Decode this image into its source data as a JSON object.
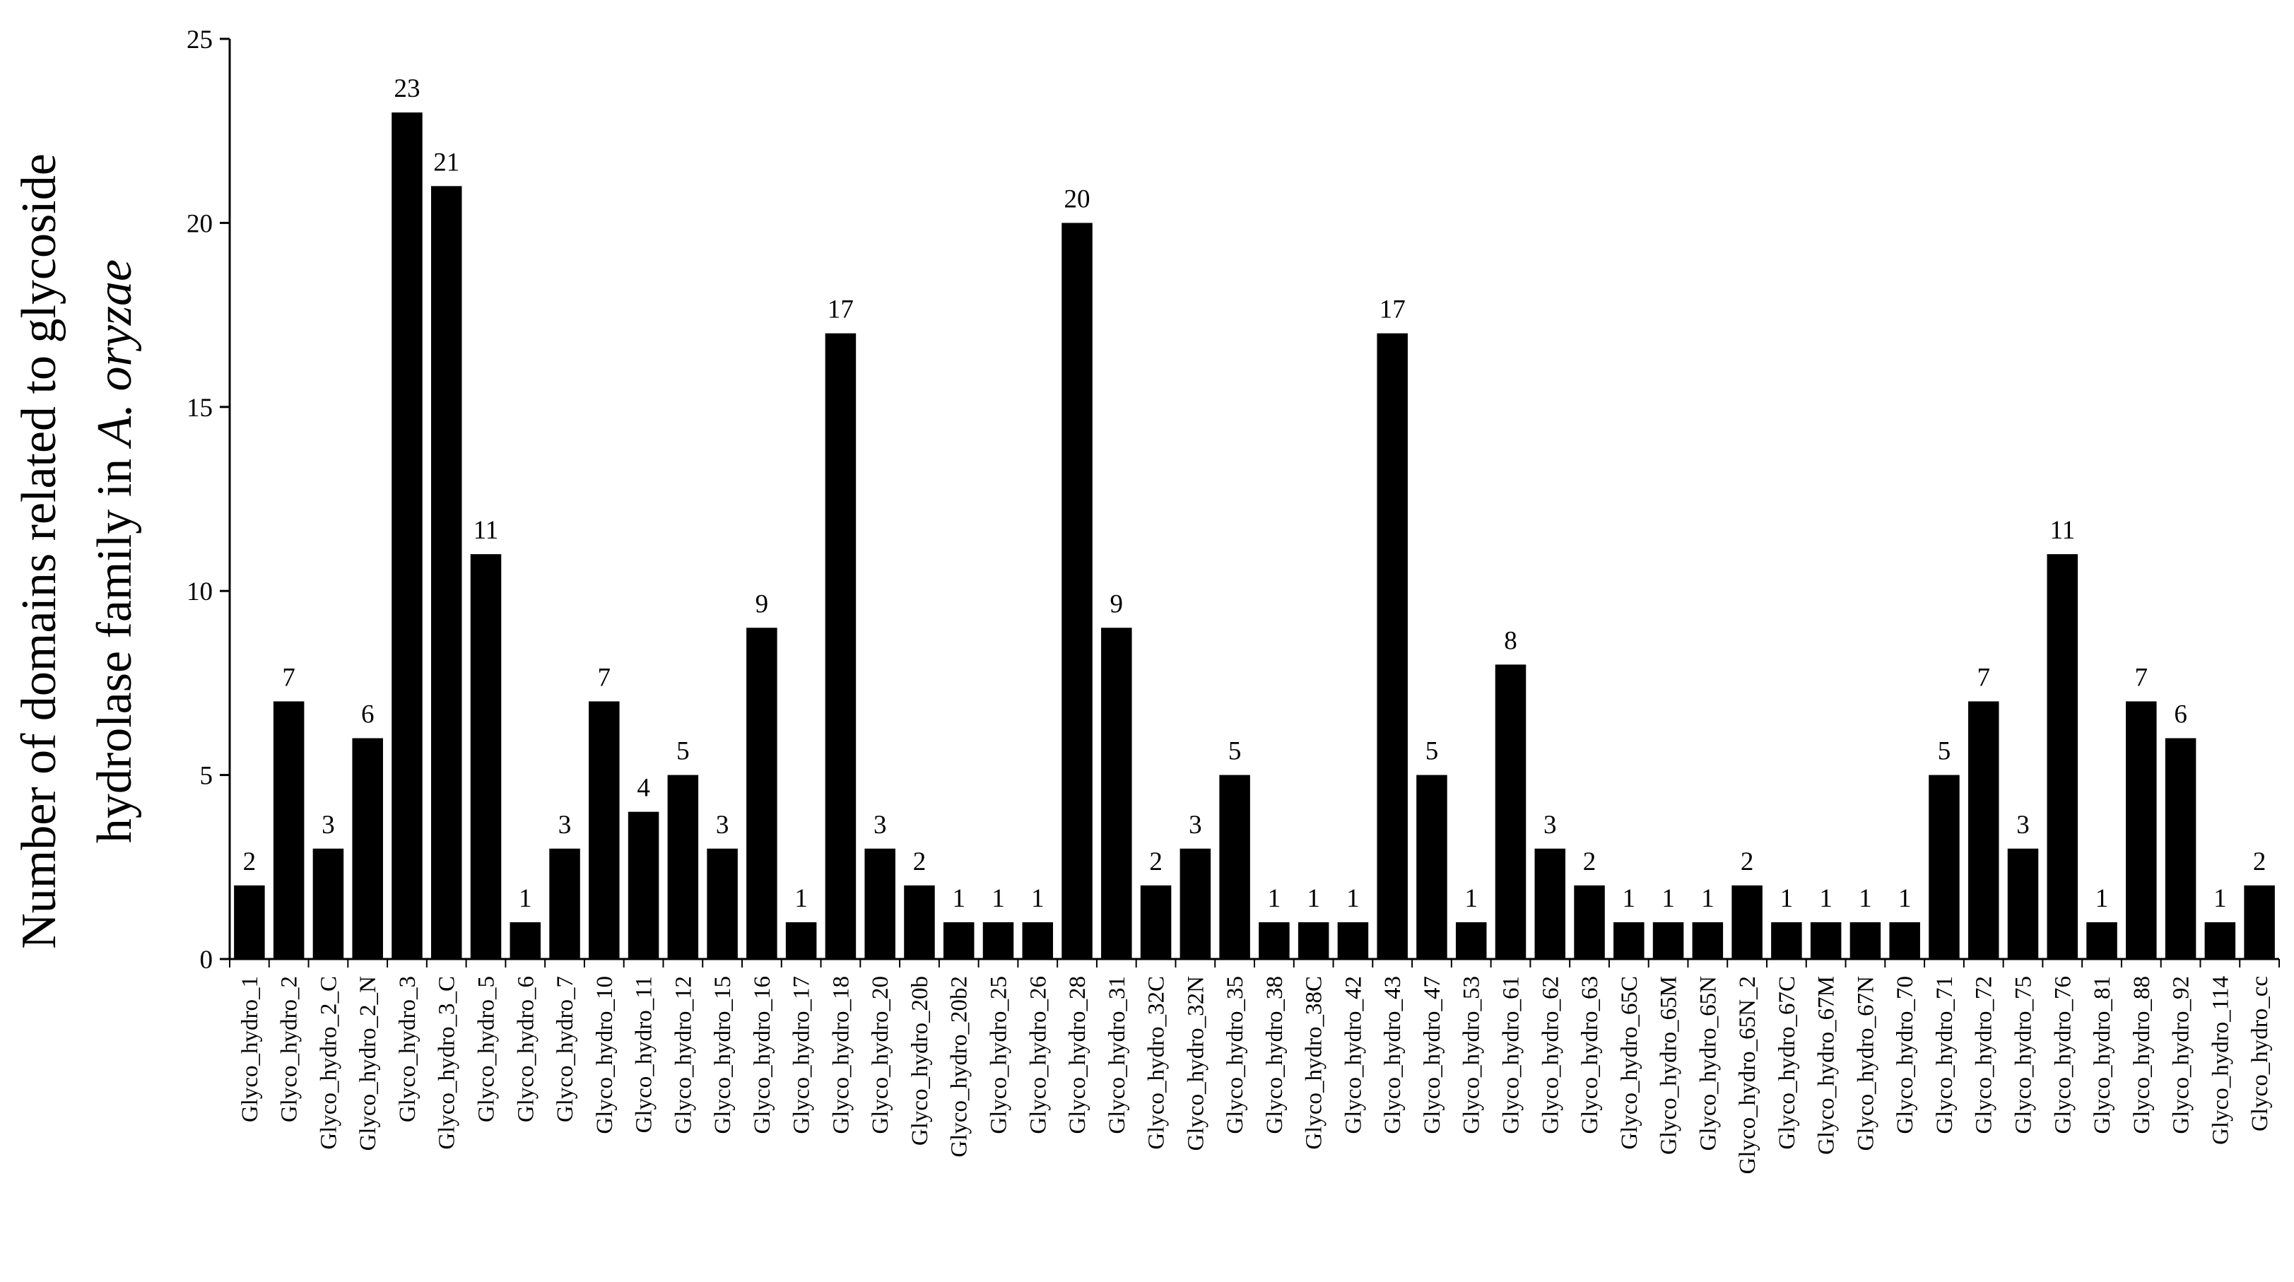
{
  "chart_data": {
    "type": "bar",
    "ylabel_line1": "Number of domains related to glycoside",
    "ylabel_line2_prefix": "hydrolase family in ",
    "ylabel_line2_italic": "A. oryzae",
    "xlabel": "",
    "ylim": [
      0,
      25
    ],
    "yticks": [
      0,
      5,
      10,
      15,
      20,
      25
    ],
    "grid": false,
    "bar_color": "#000000",
    "categories": [
      "Glyco_hydro_1",
      "Glyco_hydro_2",
      "Glyco_hydro_2_C",
      "Glyco_hydro_2_N",
      "Glyco_hydro_3",
      "Glyco_hydro_3_C",
      "Glyco_hydro_5",
      "Glyco_hydro_6",
      "Glyco_hydro_7",
      "Glyco_hydro_10",
      "Glyco_hydro_11",
      "Glyco_hydro_12",
      "Glyco_hydro_15",
      "Glyco_hydro_16",
      "Glyco_hydro_17",
      "Glyco_hydro_18",
      "Glyco_hydro_20",
      "Glyco_hydro_20b",
      "Glyco_hydro_20b2",
      "Glyco_hydro_25",
      "Glyco_hydro_26",
      "Glyco_hydro_28",
      "Glyco_hydro_31",
      "Glyco_hydro_32C",
      "Glyco_hydro_32N",
      "Glyco_hydro_35",
      "Glyco_hydro_38",
      "Glyco_hydro_38C",
      "Glyco_hydro_42",
      "Glyco_hydro_43",
      "Glyco_hydro_47",
      "Glyco_hydro_53",
      "Glyco_hydro_61",
      "Glyco_hydro_62",
      "Glyco_hydro_63",
      "Glyco_hydro_65C",
      "Glyco_hydro_65M",
      "Glyco_hydro_65N",
      "Glyco_hydro_65N_2",
      "Glyco_hydro_67C",
      "Glyco_hydro_67M",
      "Glyco_hydro_67N",
      "Glyco_hydro_70",
      "Glyco_hydro_71",
      "Glyco_hydro_72",
      "Glyco_hydro_75",
      "Glyco_hydro_76",
      "Glyco_hydro_81",
      "Glyco_hydro_88",
      "Glyco_hydro_92",
      "Glyco_hydro_114",
      "Glyco_hydro_cc"
    ],
    "values": [
      2,
      7,
      3,
      6,
      23,
      21,
      11,
      1,
      3,
      7,
      4,
      5,
      3,
      9,
      1,
      17,
      3,
      2,
      1,
      1,
      1,
      20,
      9,
      2,
      3,
      5,
      1,
      1,
      1,
      17,
      5,
      1,
      8,
      3,
      2,
      1,
      1,
      1,
      2,
      1,
      1,
      1,
      1,
      5,
      7,
      3,
      11,
      1,
      7,
      6,
      1,
      2
    ]
  }
}
